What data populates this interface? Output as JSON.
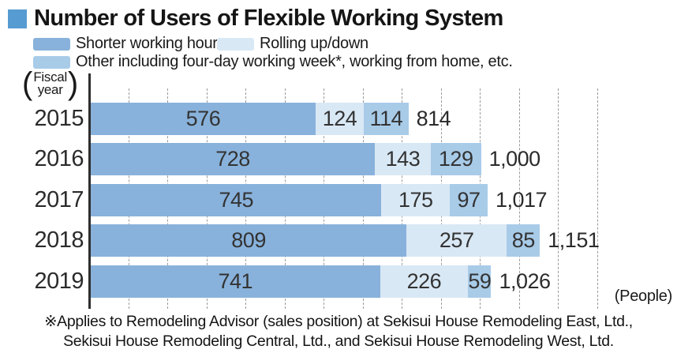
{
  "title": {
    "text": "Number of Users of Flexible Working System",
    "square_color": "#569bd2"
  },
  "legend": {
    "items": [
      {
        "label": "Shorter working hours",
        "color": "#88b2db"
      },
      {
        "label": "Rolling up/down",
        "color": "#d9e8f5"
      },
      {
        "label": "Other including four-day working week*, working from home, etc.",
        "color": "#a8cbe8"
      }
    ]
  },
  "axis_labels": {
    "paren_open": "(",
    "paren_close": ")",
    "fiscal_line1": "Fiscal",
    "fiscal_line2": "year",
    "people": "(People)"
  },
  "chart_data": {
    "type": "bar",
    "orientation": "horizontal",
    "stacked": true,
    "grid": true,
    "legend_position": "top",
    "categories": [
      "2015",
      "2016",
      "2017",
      "2018",
      "2019"
    ],
    "series": [
      {
        "name": "Shorter working hours",
        "color": "#88b2db",
        "values": [
          576,
          728,
          745,
          809,
          741
        ]
      },
      {
        "name": "Rolling up/down",
        "color": "#d9e8f5",
        "values": [
          124,
          143,
          175,
          257,
          226
        ]
      },
      {
        "name": "Other including four-day working week*, working from home, etc.",
        "color": "#a8cbe8",
        "values": [
          114,
          129,
          97,
          85,
          59
        ]
      }
    ],
    "totals": [
      814,
      1000,
      1017,
      1151,
      1026
    ],
    "total_labels": [
      "814",
      "1,000",
      "1,017",
      "1,151",
      "1,026"
    ],
    "xlabel": "(People)",
    "ylabel": "Fiscal year",
    "xlim": [
      0,
      1300
    ],
    "gridline_step": 100
  },
  "footnote": {
    "line1": "※Applies to Remodeling Advisor (sales position) at Sekisui House Remodeling East, Ltd.,",
    "line2": "Sekisui House Remodeling Central, Ltd., and Sekisui House Remodeling West, Ltd."
  }
}
